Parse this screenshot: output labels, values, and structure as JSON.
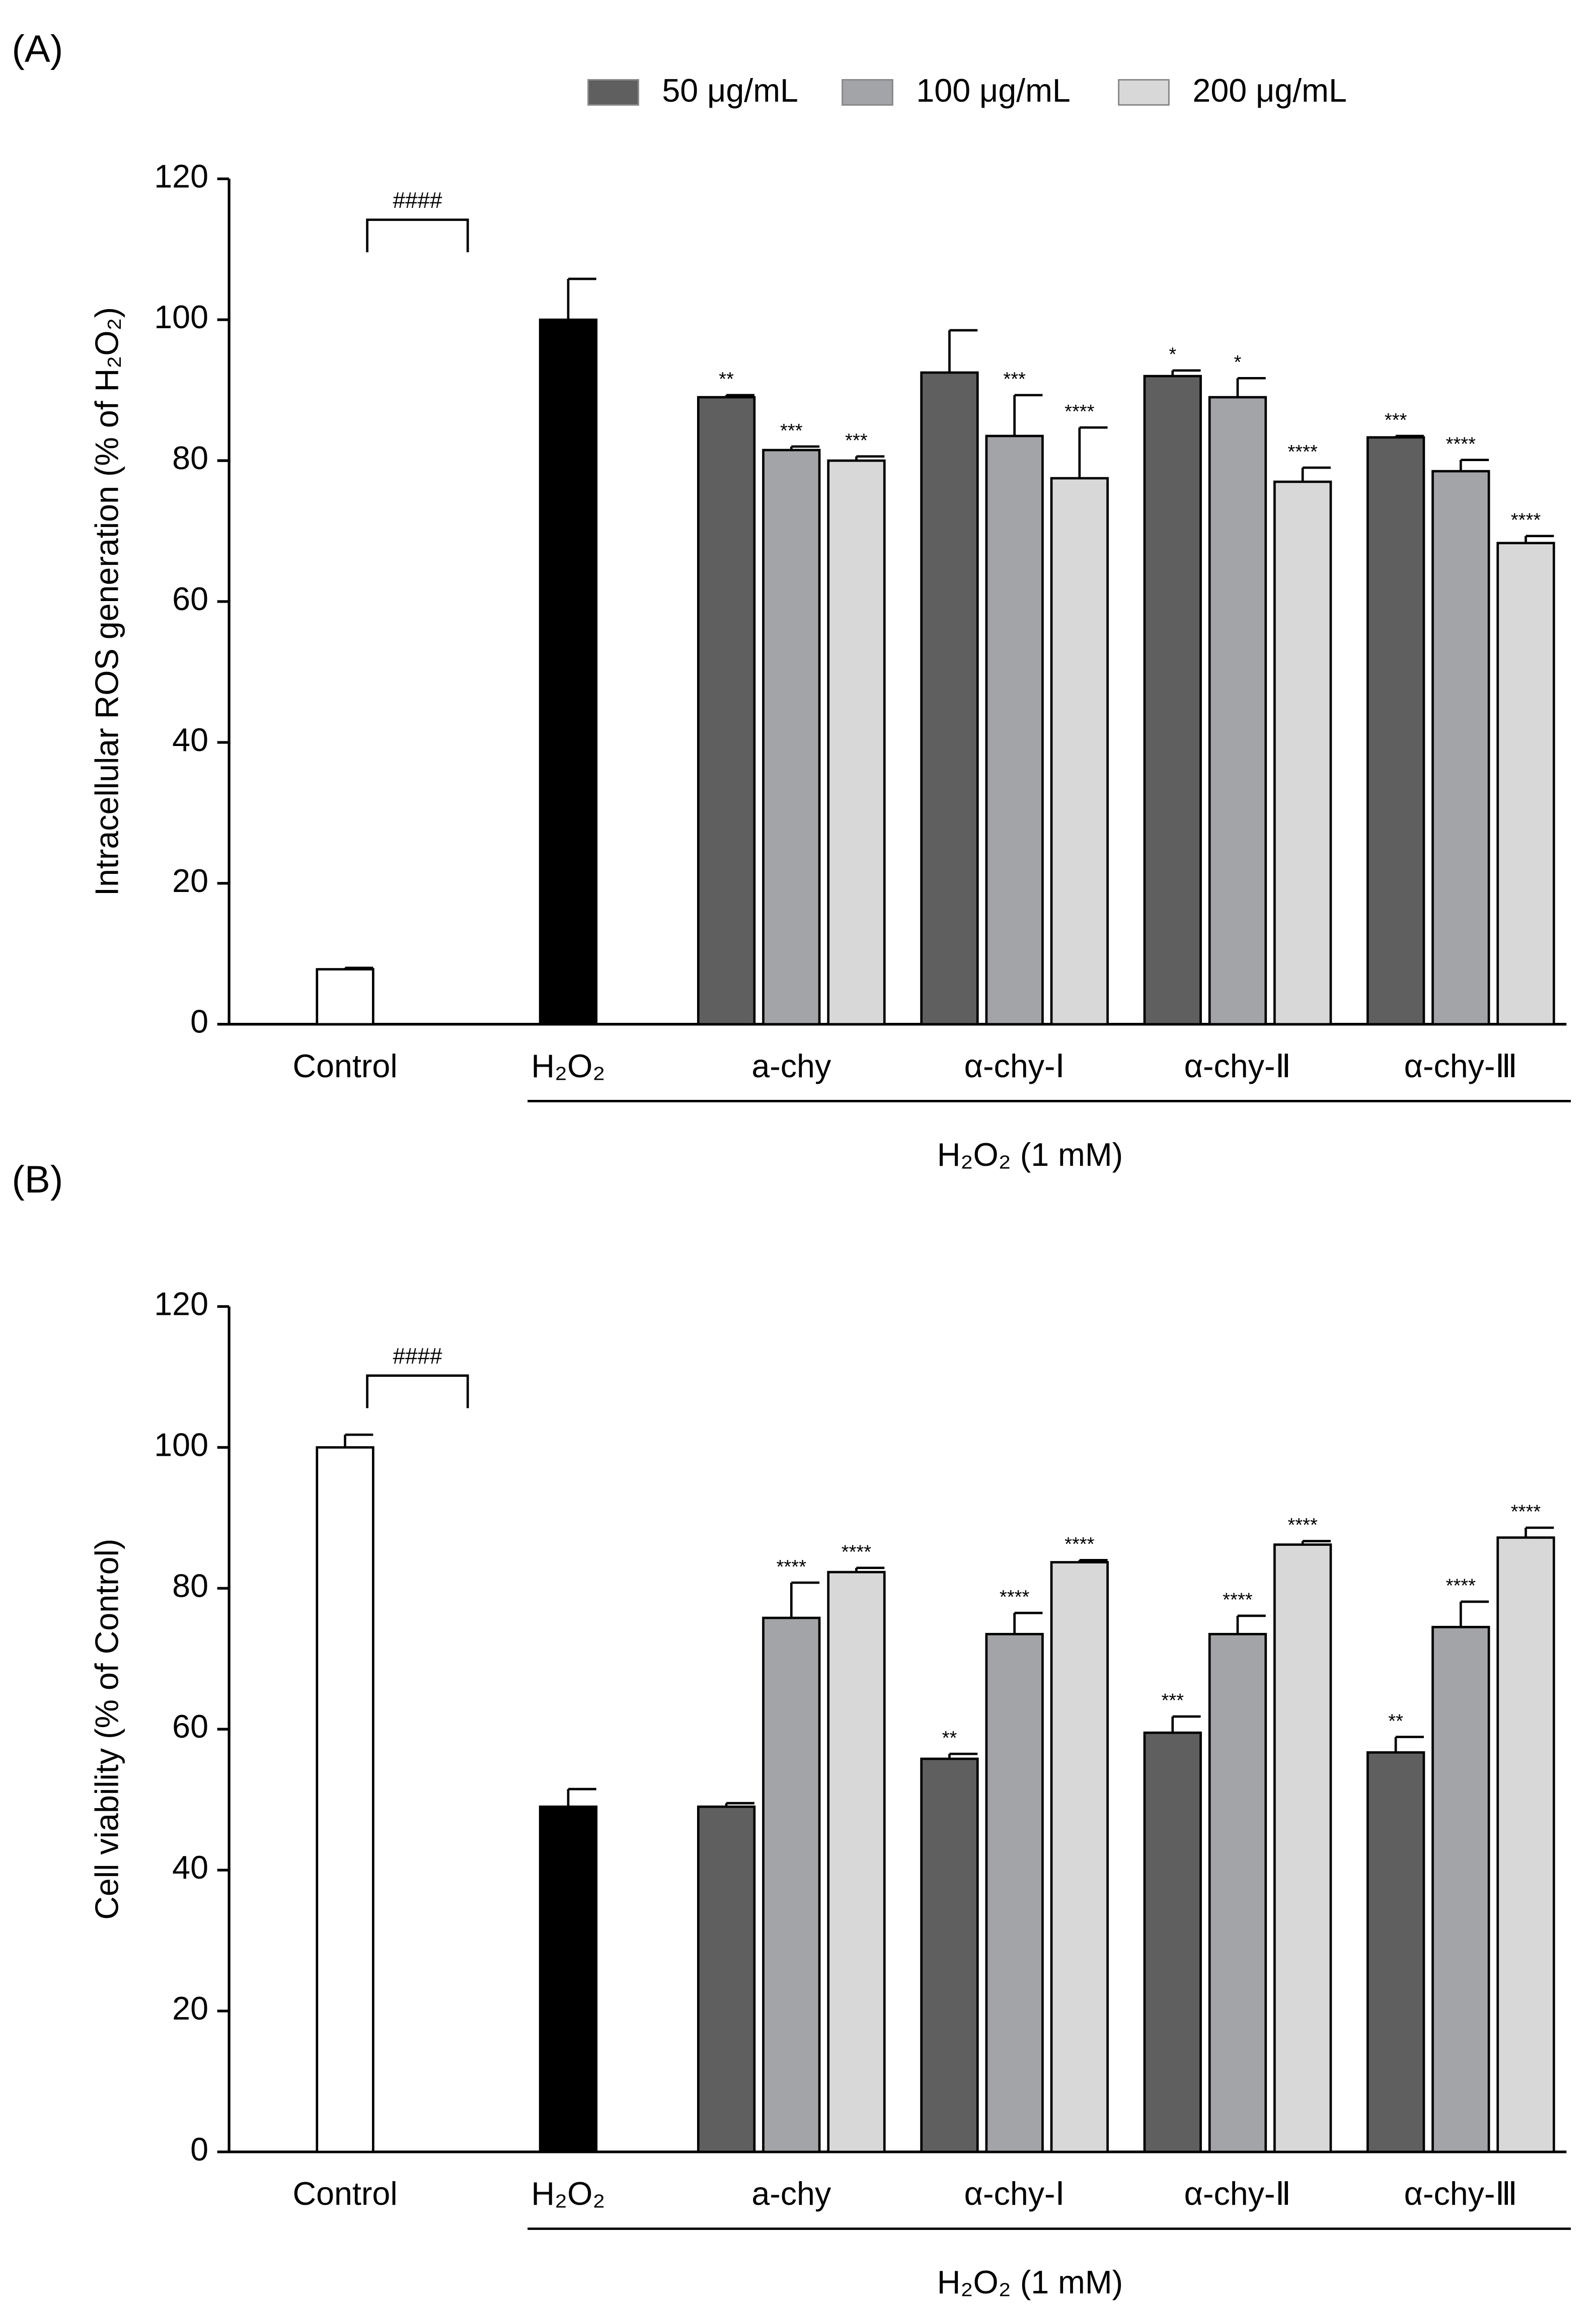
{
  "chart_data": [
    {
      "type": "bar",
      "panel_label": "(A)",
      "ylabel": "Intracellular ROS generation (% of H₂O₂)",
      "xlabel": "H₂O₂ (1 mM)",
      "legend": "top",
      "categories": [
        "Control",
        "H₂O₂",
        "a-chy",
        "α-chy-Ⅰ",
        "α-chy-Ⅱ",
        "α-chy-Ⅲ"
      ],
      "reference": {
        "values": [
          7.8,
          100
        ],
        "errors": [
          0.2,
          5.8
        ],
        "colors": [
          "#ffffff",
          "#000000"
        ]
      },
      "bracket_label": "####",
      "ylim": [
        0,
        120
      ],
      "yticks": [
        0,
        20,
        40,
        60,
        80,
        100,
        120
      ],
      "series": [
        {
          "name": "50 μg/mL",
          "color": "#5f5f5f",
          "values": [
            null,
            null,
            89,
            92.5,
            92,
            83.3
          ],
          "errors": [
            null,
            null,
            0.3,
            6,
            0.8,
            0.2
          ],
          "labels": [
            null,
            null,
            "**",
            null,
            "*",
            "***"
          ]
        },
        {
          "name": "100 μg/mL",
          "color": "#a3a4a8",
          "values": [
            null,
            null,
            81.5,
            83.5,
            89,
            78.5
          ],
          "errors": [
            null,
            null,
            0.5,
            5.8,
            2.7,
            1.6
          ],
          "labels": [
            null,
            null,
            "***",
            "***",
            "*",
            "****"
          ]
        },
        {
          "name": "200 μg/mL",
          "color": "#d8d8d8",
          "values": [
            null,
            null,
            80,
            77.5,
            77,
            68.3
          ],
          "errors": [
            null,
            null,
            0.6,
            7.2,
            2,
            1
          ],
          "labels": [
            null,
            null,
            "***",
            "****",
            "****",
            "****"
          ]
        }
      ]
    },
    {
      "type": "bar",
      "panel_label": "(B)",
      "ylabel": "Cell viability (% of  Control)",
      "xlabel": "H₂O₂ (1 mM)",
      "categories": [
        "Control",
        "H₂O₂",
        "a-chy",
        "α-chy-Ⅰ",
        "α-chy-Ⅱ",
        "α-chy-Ⅲ"
      ],
      "reference": {
        "values": [
          100,
          49
        ],
        "errors": [
          1.8,
          2.5
        ],
        "colors": [
          "#ffffff",
          "#000000"
        ]
      },
      "bracket_label": "####",
      "ylim": [
        0,
        120
      ],
      "yticks": [
        0,
        20,
        40,
        60,
        80,
        100,
        120
      ],
      "series": [
        {
          "color": "#5f5f5f",
          "values": [
            null,
            null,
            49,
            55.8,
            59.5,
            56.7
          ],
          "errors": [
            null,
            null,
            0.5,
            0.7,
            2.3,
            2.2
          ],
          "labels": [
            null,
            null,
            null,
            "**",
            "***",
            "**"
          ]
        },
        {
          "color": "#a3a4a8",
          "values": [
            null,
            null,
            75.8,
            73.5,
            73.5,
            74.5
          ],
          "errors": [
            null,
            null,
            5,
            3,
            2.6,
            3.6
          ],
          "labels": [
            null,
            null,
            "****",
            "****",
            "****",
            "****"
          ]
        },
        {
          "color": "#d8d8d8",
          "values": [
            null,
            null,
            82.3,
            83.7,
            86.2,
            87.2
          ],
          "errors": [
            null,
            null,
            0.6,
            0.3,
            0.5,
            1.4
          ],
          "labels": [
            null,
            null,
            "****",
            "****",
            "****",
            "****"
          ]
        }
      ]
    }
  ]
}
